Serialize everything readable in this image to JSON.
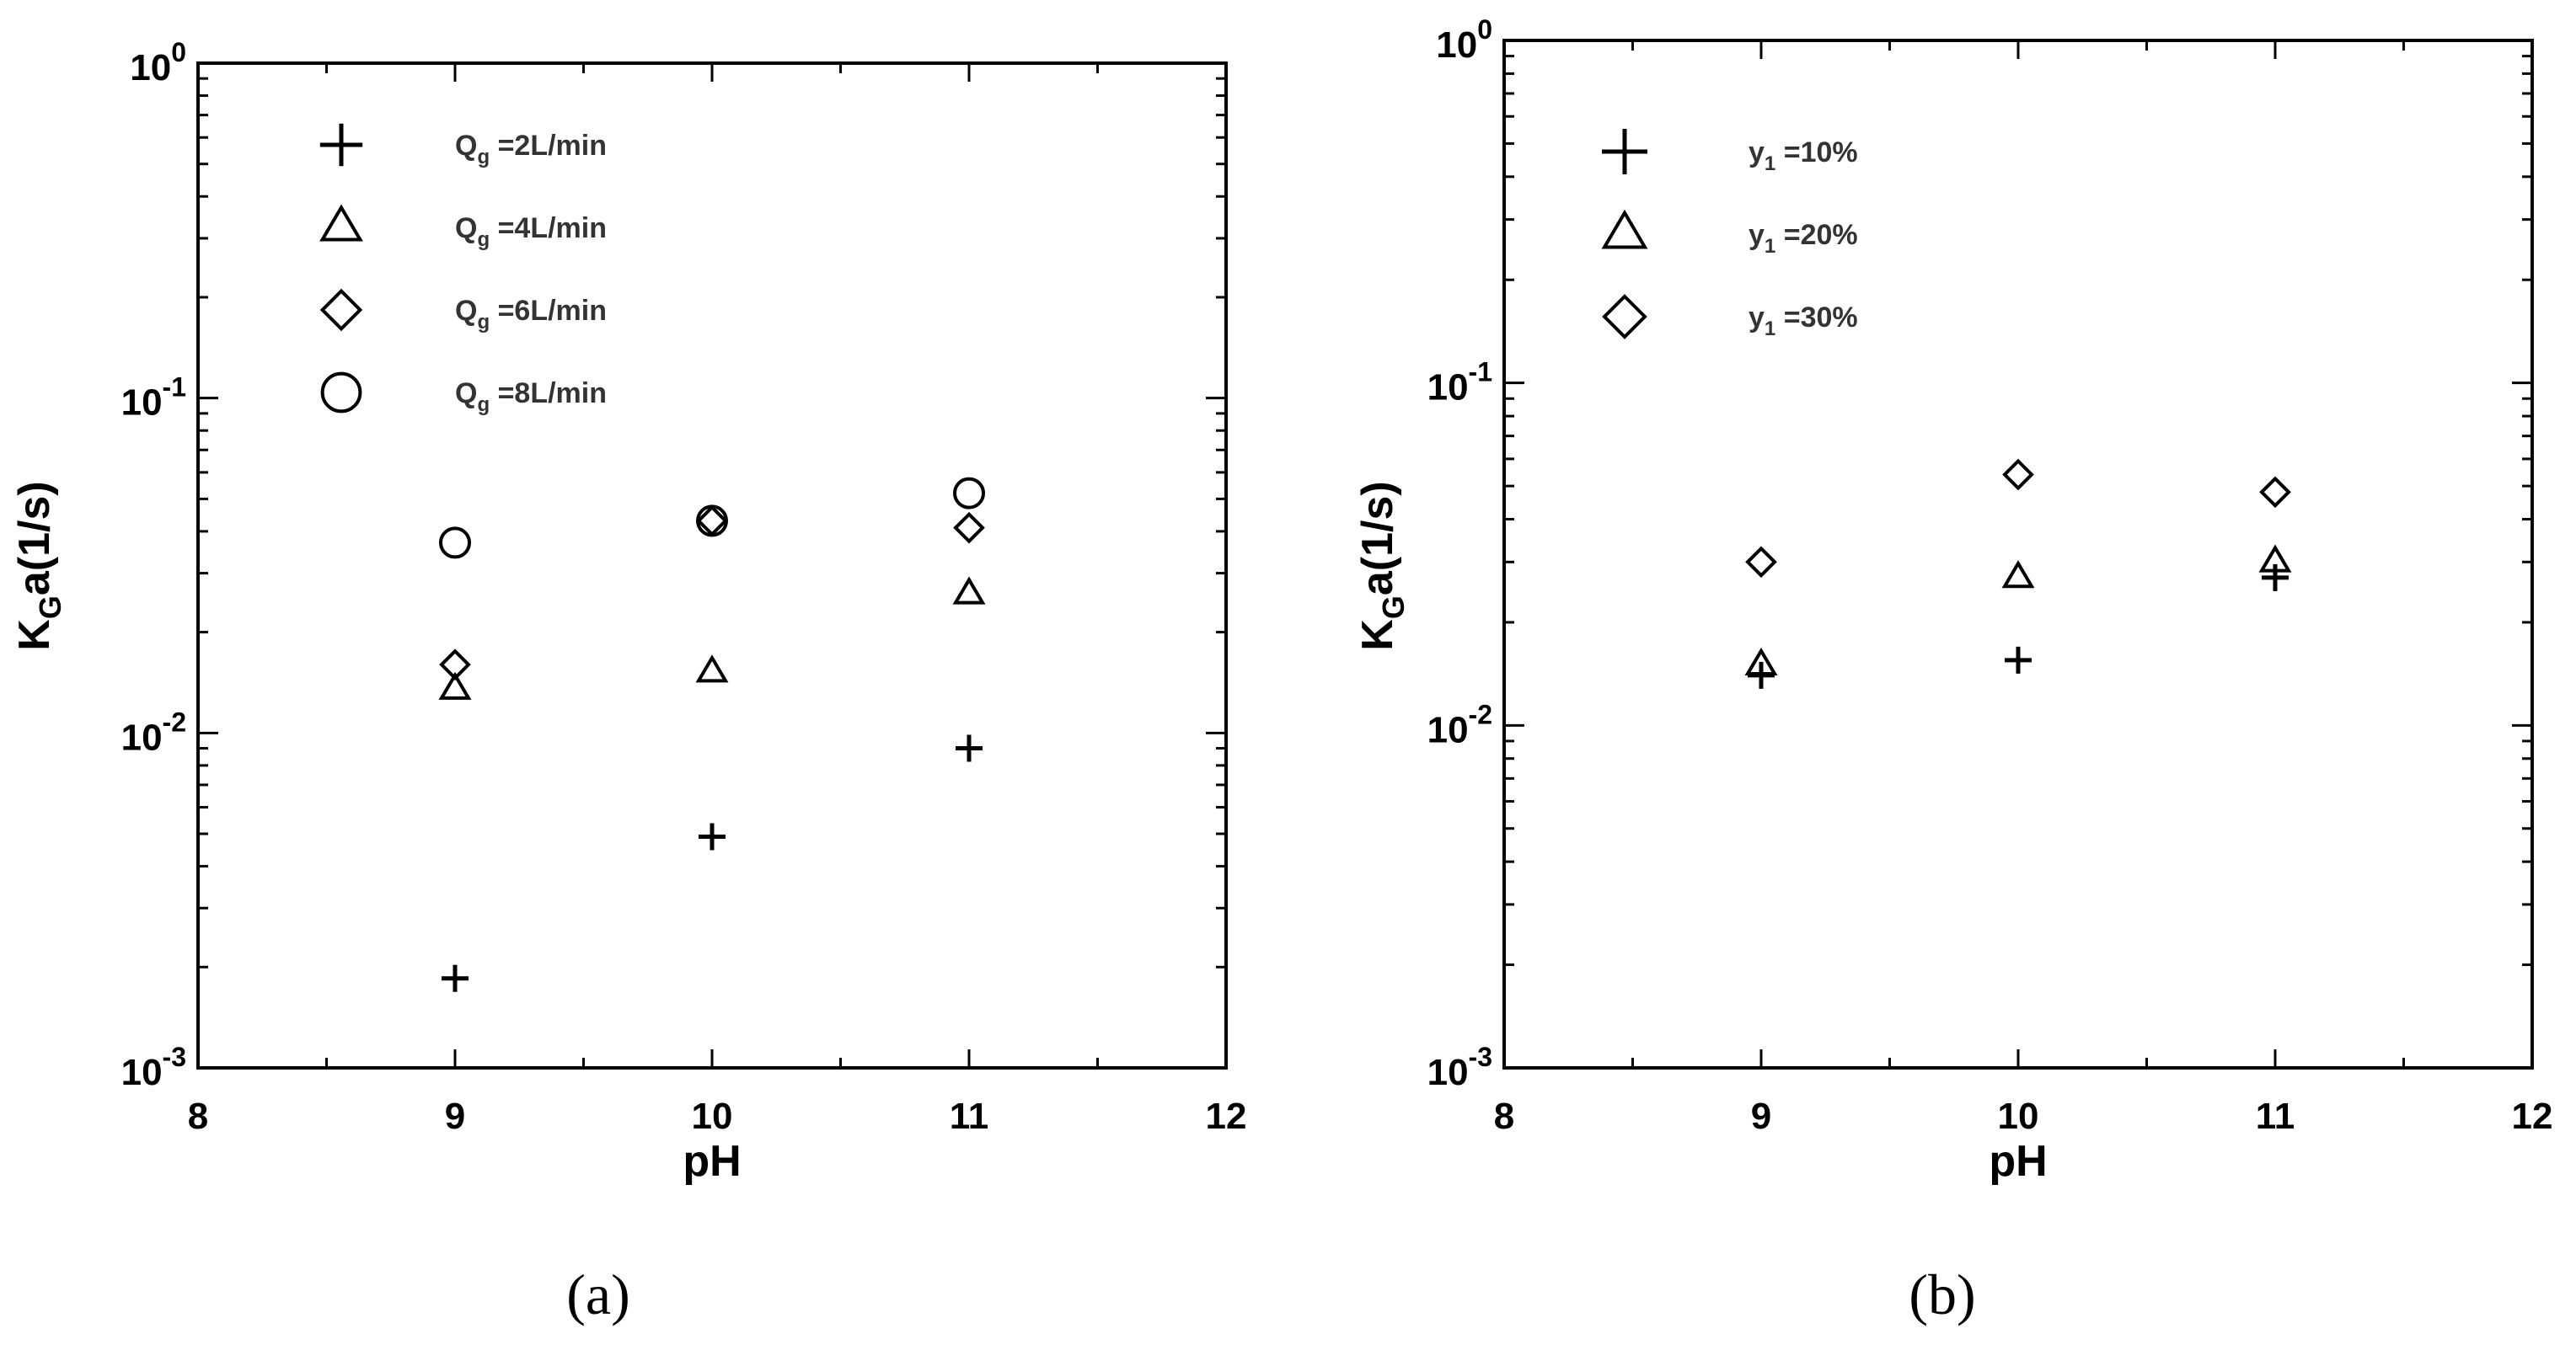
{
  "chart_data": [
    {
      "panel": "a",
      "caption": "(a)",
      "type": "scatter",
      "xlabel": "pH",
      "ylabel_main": "K",
      "ylabel_sub": "G",
      "ylabel_rest": "a(1/s)",
      "xlim": [
        8,
        12
      ],
      "ylim": [
        0.001,
        1
      ],
      "yscale": "log",
      "x_ticks": [
        "8",
        "9",
        "10",
        "11",
        "12"
      ],
      "y_ticks": [
        {
          "base": "10",
          "exp": "0"
        },
        {
          "base": "10",
          "exp": "-1"
        },
        {
          "base": "10",
          "exp": "-2"
        },
        {
          "base": "10",
          "exp": "-3"
        }
      ],
      "legend_position": "top-left",
      "series": [
        {
          "marker": "plus",
          "label": {
            "main": "Q",
            "sub": "g",
            "rest": "=2L/min"
          },
          "x": [
            9,
            10,
            11
          ],
          "y": [
            0.00185,
            0.0049,
            0.009
          ]
        },
        {
          "marker": "triangle",
          "label": {
            "main": "Q",
            "sub": "g",
            "rest": "=4L/min"
          },
          "x": [
            9,
            10,
            11
          ],
          "y": [
            0.0135,
            0.0152,
            0.026
          ]
        },
        {
          "marker": "diamond",
          "label": {
            "main": "Q",
            "sub": "g",
            "rest": "=6L/min"
          },
          "x": [
            9,
            10,
            11
          ],
          "y": [
            0.016,
            0.043,
            0.041
          ]
        },
        {
          "marker": "circle",
          "label": {
            "main": "Q",
            "sub": "g",
            "rest": "=8L/min"
          },
          "x": [
            9,
            10,
            11
          ],
          "y": [
            0.037,
            0.043,
            0.052
          ]
        }
      ]
    },
    {
      "panel": "b",
      "caption": "(b)",
      "type": "scatter",
      "xlabel": "pH",
      "ylabel_main": "K",
      "ylabel_sub": "G",
      "ylabel_rest": "a(1/s)",
      "xlim": [
        8,
        12
      ],
      "ylim": [
        0.001,
        1
      ],
      "yscale": "log",
      "x_ticks": [
        "8",
        "9",
        "10",
        "11",
        "12"
      ],
      "y_ticks": [
        {
          "base": "10",
          "exp": "0"
        },
        {
          "base": "10",
          "exp": "-1"
        },
        {
          "base": "10",
          "exp": "-2"
        },
        {
          "base": "10",
          "exp": "-3"
        }
      ],
      "legend_position": "top-left",
      "series": [
        {
          "marker": "plus",
          "label": {
            "main": "y",
            "sub": "1",
            "rest": "=10%"
          },
          "x": [
            9,
            10,
            11
          ],
          "y": [
            0.014,
            0.0155,
            0.027
          ]
        },
        {
          "marker": "triangle",
          "label": {
            "main": "y",
            "sub": "1",
            "rest": "=20%"
          },
          "x": [
            9,
            10,
            11
          ],
          "y": [
            0.015,
            0.027,
            0.03
          ]
        },
        {
          "marker": "diamond",
          "label": {
            "main": "y",
            "sub": "1",
            "rest": "=30%"
          },
          "x": [
            9,
            10,
            11
          ],
          "y": [
            0.03,
            0.054,
            0.048
          ]
        }
      ]
    }
  ]
}
